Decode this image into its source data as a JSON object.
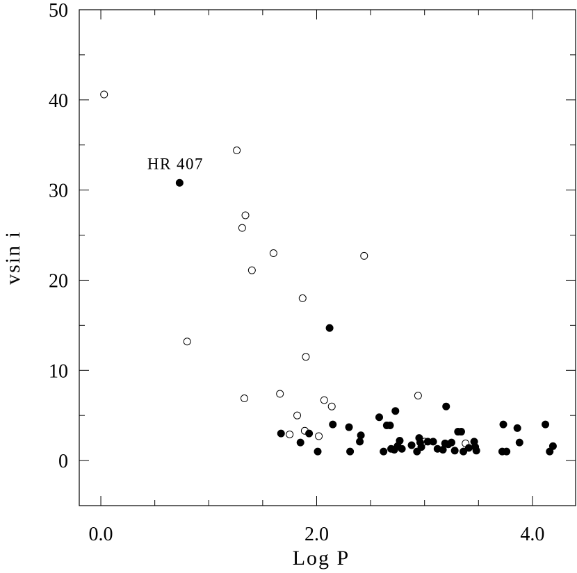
{
  "chart_data": {
    "type": "scatter",
    "xlabel": "Log P",
    "ylabel": "vsin i",
    "xlim": [
      -0.2,
      4.4
    ],
    "ylim": [
      -5,
      50
    ],
    "x_ticks": [
      "0.0",
      "2.0",
      "4.0"
    ],
    "y_ticks": [
      "0",
      "10",
      "20",
      "30",
      "40",
      "50"
    ],
    "grid": false,
    "annotations": [
      {
        "text": "HR 407",
        "x": 0.75,
        "y": 30.8
      }
    ],
    "series": [
      {
        "marker": "open-circle",
        "points": [
          [
            0.03,
            40.6
          ],
          [
            0.8,
            13.2
          ],
          [
            1.26,
            34.4
          ],
          [
            1.34,
            27.2
          ],
          [
            1.31,
            25.8
          ],
          [
            1.4,
            21.1
          ],
          [
            1.33,
            6.9
          ],
          [
            1.6,
            23.0
          ],
          [
            1.66,
            7.4
          ],
          [
            1.75,
            2.9
          ],
          [
            1.82,
            5.0
          ],
          [
            1.87,
            18.0
          ],
          [
            1.89,
            3.3
          ],
          [
            1.9,
            11.5
          ],
          [
            2.02,
            2.7
          ],
          [
            2.07,
            6.7
          ],
          [
            2.14,
            6.0
          ],
          [
            2.44,
            22.7
          ],
          [
            2.94,
            7.2
          ],
          [
            3.0,
            2.1
          ],
          [
            3.38,
            1.9
          ]
        ]
      },
      {
        "marker": "filled-circle",
        "points": [
          [
            0.73,
            30.8
          ],
          [
            2.12,
            14.7
          ],
          [
            1.67,
            3.0
          ],
          [
            1.85,
            2.0
          ],
          [
            1.93,
            3.0
          ],
          [
            2.01,
            1.0
          ],
          [
            2.15,
            4.0
          ],
          [
            2.3,
            3.7
          ],
          [
            2.31,
            1.0
          ],
          [
            2.4,
            2.1
          ],
          [
            2.41,
            2.8
          ],
          [
            2.58,
            4.8
          ],
          [
            2.62,
            1.0
          ],
          [
            2.65,
            3.9
          ],
          [
            2.68,
            3.9
          ],
          [
            2.69,
            1.3
          ],
          [
            2.72,
            1.2
          ],
          [
            2.73,
            5.5
          ],
          [
            2.75,
            1.6
          ],
          [
            2.77,
            2.2
          ],
          [
            2.79,
            1.3
          ],
          [
            2.88,
            1.7
          ],
          [
            2.93,
            1.0
          ],
          [
            2.95,
            2.5
          ],
          [
            2.96,
            2.0
          ],
          [
            2.97,
            1.5
          ],
          [
            3.03,
            2.1
          ],
          [
            3.08,
            2.1
          ],
          [
            3.12,
            1.3
          ],
          [
            3.17,
            1.2
          ],
          [
            3.19,
            1.9
          ],
          [
            3.2,
            6.0
          ],
          [
            3.22,
            1.8
          ],
          [
            3.25,
            2.0
          ],
          [
            3.28,
            1.1
          ],
          [
            3.31,
            3.2
          ],
          [
            3.34,
            3.2
          ],
          [
            3.36,
            1.0
          ],
          [
            3.41,
            1.4
          ],
          [
            3.46,
            2.1
          ],
          [
            3.47,
            1.5
          ],
          [
            3.48,
            1.1
          ],
          [
            3.72,
            1.0
          ],
          [
            3.73,
            4.0
          ],
          [
            3.76,
            1.0
          ],
          [
            3.86,
            3.6
          ],
          [
            3.88,
            2.0
          ],
          [
            4.12,
            4.0
          ],
          [
            4.16,
            1.0
          ],
          [
            4.19,
            1.6
          ]
        ]
      }
    ]
  }
}
